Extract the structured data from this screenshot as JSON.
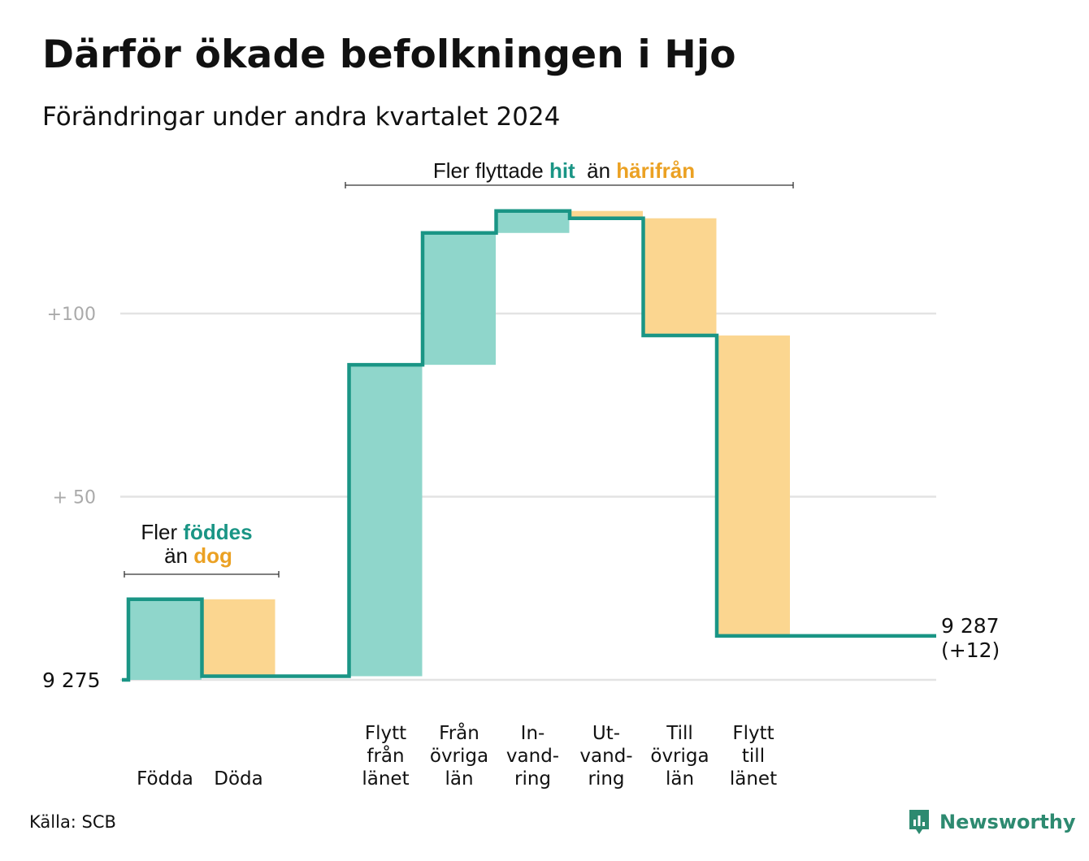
{
  "title": "Därför ökade befolkningen i Hjo",
  "subtitle": "Förändringar under andra kvartalet 2024",
  "source": "Källa: SCB",
  "logo_text": "Newsworthy",
  "colors": {
    "increase_fill": "#8fd6cb",
    "decrease_fill": "#fbd690",
    "line": "#1a9585",
    "accent_orange": "#eba123",
    "grid": "#e3e3e3",
    "axis_label": "#aaaaaa"
  },
  "chart_data": {
    "type": "waterfall",
    "start_label": "9  275",
    "end_label": [
      "9 287",
      "(+12)"
    ],
    "ylim": [
      0,
      133
    ],
    "yticks": [
      {
        "value": 100,
        "label": "+100"
      },
      {
        "value": 50,
        "label": "+  50"
      }
    ],
    "categories": [
      {
        "label": [
          "Födda"
        ],
        "change": 22,
        "kind": "increase"
      },
      {
        "label": [
          "Döda"
        ],
        "change": -21,
        "kind": "decrease"
      },
      {
        "label": [],
        "change": 0,
        "kind": "spacer"
      },
      {
        "label": [
          "Flytt",
          "från",
          "länet"
        ],
        "change": 85,
        "kind": "increase"
      },
      {
        "label": [
          "Från",
          "övriga",
          "län"
        ],
        "change": 36,
        "kind": "increase"
      },
      {
        "label": [
          "In-",
          "vand-",
          "ring"
        ],
        "change": 6,
        "kind": "increase"
      },
      {
        "label": [
          "Ut-",
          "vand-",
          "ring"
        ],
        "change": -2,
        "kind": "decrease"
      },
      {
        "label": [
          "Till",
          "övriga",
          "län"
        ],
        "change": -32,
        "kind": "decrease"
      },
      {
        "label": [
          "Flytt",
          "till",
          "länet"
        ],
        "change": -82,
        "kind": "decrease"
      }
    ],
    "annotations": [
      {
        "parts": [
          {
            "text": "Fler ",
            "style": "plain"
          },
          {
            "text": "föddes",
            "style": "increase"
          }
        ],
        "parts2": [
          {
            "text": "än ",
            "style": "plain"
          },
          {
            "text": "dog",
            "style": "decrease"
          }
        ]
      },
      {
        "parts": [
          {
            "text": "Fler flyttade ",
            "style": "plain"
          },
          {
            "text": "hit",
            "style": "increase"
          },
          {
            "text": "  än ",
            "style": "plain"
          },
          {
            "text": "härifrån",
            "style": "decrease"
          }
        ]
      }
    ]
  }
}
